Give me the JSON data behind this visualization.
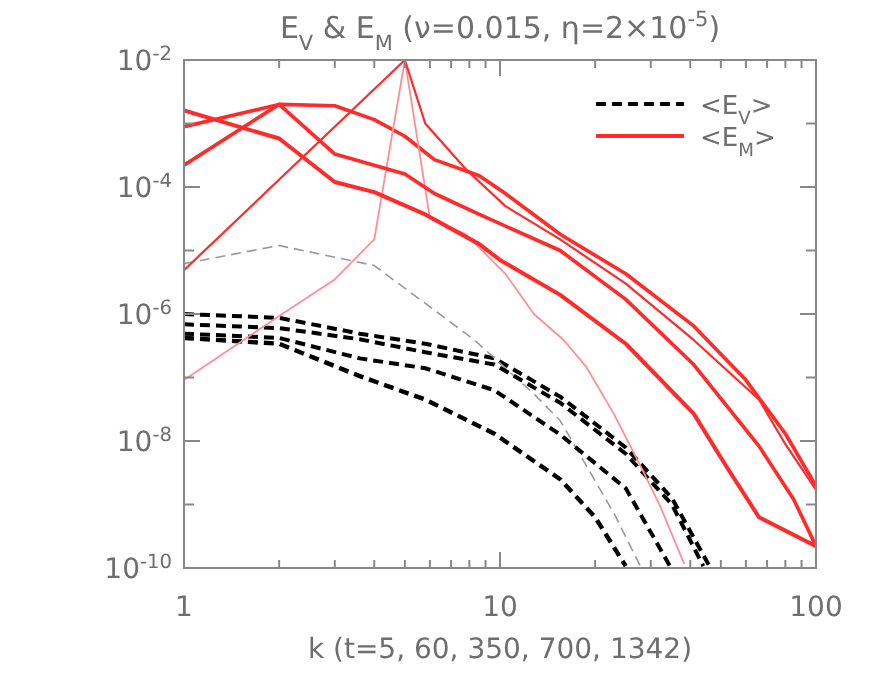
{
  "chart_data": {
    "type": "line",
    "title": "E$_{V}$ & E$_{M}$ (ν=0.015, η=2×10$^{-5}$)",
    "xlabel": "k (t=5, 60, 350, 700, 1342)",
    "log": "xy",
    "grid": false,
    "legend": "top right",
    "xlim": [
      1,
      100
    ],
    "xticks": [
      1,
      {
        "value": 2,
        "label": null
      },
      {
        "value": 3,
        "label": null
      },
      {
        "value": 4,
        "label": null
      },
      {
        "value": 5,
        "label": null
      },
      {
        "value": 6,
        "label": null
      },
      {
        "value": 7,
        "label": null
      },
      {
        "value": 8,
        "label": null
      },
      {
        "value": 9,
        "label": null
      },
      10,
      {
        "value": 20,
        "label": null
      },
      {
        "value": 30,
        "label": null
      },
      {
        "value": 40,
        "label": null
      },
      {
        "value": 50,
        "label": null
      },
      {
        "value": 60,
        "label": null
      },
      {
        "value": 70,
        "label": null
      },
      {
        "value": 80,
        "label": null
      },
      {
        "value": 90,
        "label": null
      },
      100
    ],
    "ylim": [
      1e-10,
      0.01
    ],
    "yticks": [
      {
        "value": 1e-10,
        "label": "10$^{-10}$"
      },
      {
        "value": 1e-09,
        "label": null
      },
      {
        "value": 1e-08,
        "label": "10$^{-8}$"
      },
      {
        "value": 1e-07,
        "label": null
      },
      {
        "value": 1e-06,
        "label": "10$^{-6}$"
      },
      {
        "value": 1e-05,
        "label": null
      },
      {
        "value": 0.0001,
        "label": "10$^{-4}$"
      },
      {
        "value": 0.001,
        "label": null
      },
      {
        "value": 0.01,
        "label": "10$^{-2}$"
      }
    ],
    "series": [
      {
        "name": "<E$_{V}$>",
        "color": "#000000",
        "line_style": "dashed",
        "x": [
          1,
          2,
          3.6,
          5.8,
          9.6,
          15.5,
          25,
          35,
          46
        ],
        "values": [
          1e-06,
          8.7e-07,
          4.9e-07,
          3.4e-07,
          2e-07,
          5e-08,
          7.9e-09,
          1.26e-09,
          1.07e-10
        ]
      },
      {
        "color": "#999999",
        "line_style": "dashed",
        "x": [
          1,
          2,
          4,
          8.3,
          12.8,
          15.5,
          23,
          27.8
        ],
        "values": [
          6.2e-06,
          1.2e-05,
          5.8e-06,
          3.9e-07,
          5.5e-08,
          2.1e-08,
          7.1e-10,
          1.07e-10
        ]
      },
      {
        "color": "#000000",
        "line_style": "dashed",
        "x": [
          1,
          2,
          3.6,
          5.8,
          9.6,
          15.5,
          25,
          35,
          44
        ],
        "values": [
          6.9e-07,
          6e-07,
          4e-07,
          2.5e-07,
          1.6e-07,
          4e-08,
          6.3e-09,
          1e-09,
          1.07e-10
        ]
      },
      {
        "color": "#000000",
        "line_style": "dashed",
        "x": [
          1,
          2,
          3.6,
          5.8,
          9.6,
          15.5,
          25,
          34.5
        ],
        "values": [
          4.9e-07,
          4.2e-07,
          2e-07,
          1.4e-07,
          6.3e-08,
          1.26e-08,
          1.8e-09,
          1.07e-10
        ]
      },
      {
        "color": "#000000",
        "line_style": "dashed",
        "x": [
          1,
          2,
          3.6,
          5.8,
          9.6,
          15.5,
          20,
          25
        ],
        "values": [
          4.2e-07,
          3.4e-07,
          1.05e-07,
          4.5e-08,
          1.3e-08,
          2.5e-09,
          6.3e-10,
          1.07e-10
        ]
      },
      {
        "name": "<E$_{M}$>",
        "color": "#ff2a2a",
        "line_style": "solid",
        "x": [
          1,
          2,
          3,
          4,
          5,
          6.2,
          8.6,
          10.4,
          15.5,
          25,
          41,
          60,
          80,
          100
        ],
        "values": [
          0.00022,
          0.002,
          0.0019,
          0.00115,
          0.00063,
          0.00027,
          0.00015,
          7.9e-05,
          1.8e-05,
          4.3e-06,
          6.5e-07,
          9.1e-08,
          1.3e-08,
          1.95e-09
        ]
      },
      {
        "color": "#ff9090",
        "line_style": "solid",
        "x": [
          1,
          2,
          3,
          4,
          5,
          6,
          7.8,
          10.4,
          12.8,
          15.9,
          18.7,
          22.9,
          27.8,
          32.1,
          38.3
        ],
        "values": [
          9.1e-08,
          9.3e-07,
          3.5e-06,
          1.5e-05,
          0.01,
          3.2e-05,
          1.8e-05,
          4.3e-06,
          1e-06,
          3.9e-07,
          1.5e-07,
          2.7e-08,
          4.1e-09,
          9.5e-10,
          1.15e-10
        ]
      },
      {
        "color": "#ff2a2a",
        "line_style": "solid",
        "x": [
          1,
          5,
          5.8,
          7.8,
          10.4,
          15.5,
          25,
          41,
          66,
          80,
          100
        ],
        "values": [
          4.9e-06,
          0.01,
          0.001,
          0.00019,
          5e-05,
          1.5e-05,
          3e-06,
          3.9e-07,
          4.5e-08,
          8.9e-09,
          1.7e-09
        ]
      },
      {
        "color": "#ff2a2a",
        "line_style": "solid",
        "x": [
          1,
          2,
          3,
          5,
          6.2,
          8.6,
          15.5,
          25,
          41,
          66,
          85,
          100
        ],
        "values": [
          0.00089,
          0.002,
          0.00033,
          0.00016,
          7.9e-05,
          3.7e-05,
          1e-05,
          1.7e-06,
          1.6e-07,
          8.3e-09,
          1.2e-09,
          2.2e-10
        ]
      },
      {
        "color": "#ff2a2a",
        "line_style": "solid",
        "x": [
          1,
          2,
          3,
          4,
          5.8,
          8.6,
          10,
          15.5,
          25,
          41,
          52,
          66,
          100
        ],
        "values": [
          0.0016,
          0.00058,
          0.00012,
          8.3e-05,
          3.7e-05,
          1.26e-05,
          7.1e-06,
          2e-06,
          3.4e-07,
          2.7e-08,
          4e-09,
          6.3e-10,
          2.2e-10
        ]
      }
    ]
  }
}
